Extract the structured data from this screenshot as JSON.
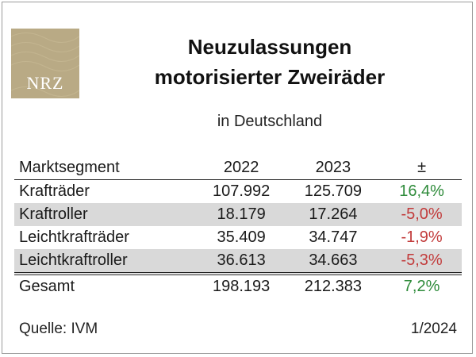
{
  "logo": {
    "text": "NRZ",
    "color": "#b9aa85"
  },
  "header": {
    "title_line1": "Neuzulassungen",
    "title_line2": "motorisierter Zweiräder",
    "subtitle": "in Deutschland"
  },
  "chart_data": {
    "type": "table",
    "title": "Neuzulassungen motorisierter Zweiräder",
    "subtitle": "in Deutschland",
    "columns": [
      "Marktsegment",
      "2022",
      "2023",
      "±"
    ],
    "rows": [
      {
        "segment": "Krafträder",
        "y2022": "107.992",
        "y2023": "125.709",
        "change": "16,4%",
        "trend": "positive"
      },
      {
        "segment": "Kraftroller",
        "y2022": "18.179",
        "y2023": "17.264",
        "change": "-5,0%",
        "trend": "negative"
      },
      {
        "segment": "Leichtkrafträder",
        "y2022": "35.409",
        "y2023": "34.747",
        "change": "-1,9%",
        "trend": "negative"
      },
      {
        "segment": "Leichtkraftroller",
        "y2022": "36.613",
        "y2023": "34.663",
        "change": "-5,3%",
        "trend": "negative"
      }
    ],
    "total": {
      "segment": "Gesamt",
      "y2022": "198.193",
      "y2023": "212.383",
      "change": "7,2%",
      "trend": "positive"
    },
    "colors": {
      "positive": "#2e8b3a",
      "negative": "#c23b3b",
      "stripe": "#d9d9d9"
    }
  },
  "footer": {
    "source": "Quelle: IVM",
    "date": "1/2024"
  }
}
